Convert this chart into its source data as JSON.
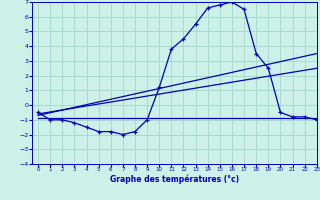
{
  "title": "Graphe des températures (°c)",
  "bg_color": "#cdf0e8",
  "grid_color": "#a0d8c8",
  "line_color": "#0000bb",
  "x_values": [
    0,
    1,
    2,
    3,
    4,
    5,
    6,
    7,
    8,
    9,
    10,
    11,
    12,
    13,
    14,
    15,
    16,
    17,
    18,
    19,
    20,
    21,
    22,
    23
  ],
  "temp_values": [
    -0.5,
    -1.0,
    -1.0,
    -1.2,
    -1.5,
    -1.8,
    -1.8,
    -2.0,
    -1.8,
    -1.0,
    1.2,
    3.8,
    4.5,
    5.5,
    6.6,
    6.8,
    7.0,
    6.5,
    3.5,
    2.5,
    -0.5,
    -0.8,
    -0.8,
    -1.0
  ],
  "trend1_x": [
    0,
    23
  ],
  "trend1_y": [
    -0.7,
    3.5
  ],
  "trend2_x": [
    0,
    23
  ],
  "trend2_y": [
    -0.6,
    2.5
  ],
  "trend3_x": [
    0,
    23
  ],
  "trend3_y": [
    -0.9,
    -0.9
  ],
  "ylim": [
    -4,
    7
  ],
  "xlim": [
    -0.5,
    23
  ],
  "yticks": [
    -4,
    -3,
    -2,
    -1,
    0,
    1,
    2,
    3,
    4,
    5,
    6,
    7
  ],
  "xticks": [
    0,
    1,
    2,
    3,
    4,
    5,
    6,
    7,
    8,
    9,
    10,
    11,
    12,
    13,
    14,
    15,
    16,
    17,
    18,
    19,
    20,
    21,
    22,
    23
  ]
}
